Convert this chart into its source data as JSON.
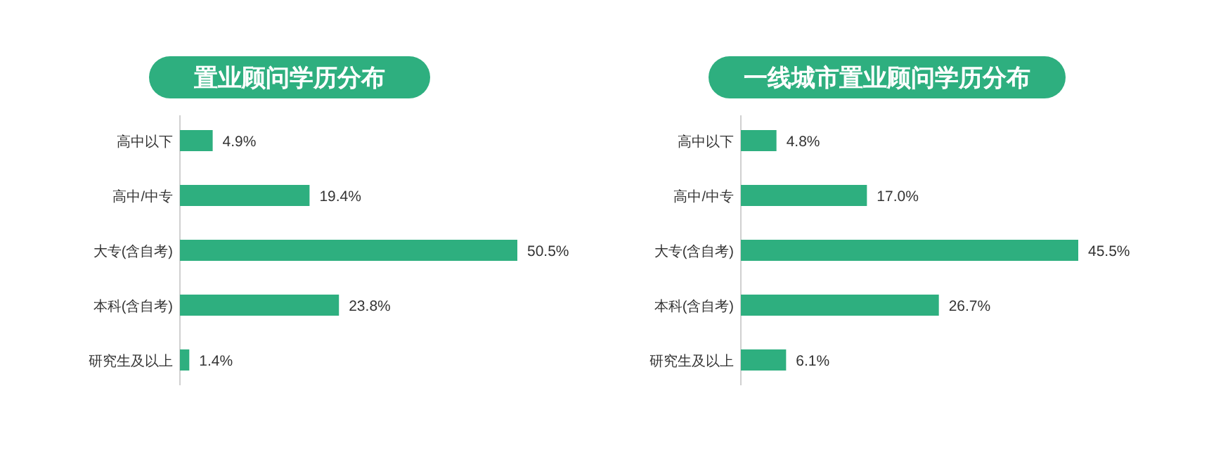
{
  "chart_data": [
    {
      "type": "bar",
      "orientation": "horizontal",
      "title": "置业顾问学历分布",
      "categories": [
        "高中以下",
        "高中/中专",
        "大专(含自考)",
        "本科(含自考)",
        "研究生及以上"
      ],
      "values": [
        4.9,
        19.4,
        50.5,
        23.8,
        1.4
      ],
      "value_labels": [
        "4.9%",
        "19.4%",
        "50.5%",
        "23.8%",
        "1.4%"
      ],
      "color": "#2eaf7f"
    },
    {
      "type": "bar",
      "orientation": "horizontal",
      "title": "一线城市置业顾问学历分布",
      "categories": [
        "高中以下",
        "高中/中专",
        "大专(含自考)",
        "本科(含自考)",
        "研究生及以上"
      ],
      "values": [
        4.8,
        17.0,
        45.5,
        26.7,
        6.1
      ],
      "value_labels": [
        "4.8%",
        "17.0%",
        "45.5%",
        "26.7%",
        "6.1%"
      ],
      "color": "#2eaf7f"
    }
  ]
}
